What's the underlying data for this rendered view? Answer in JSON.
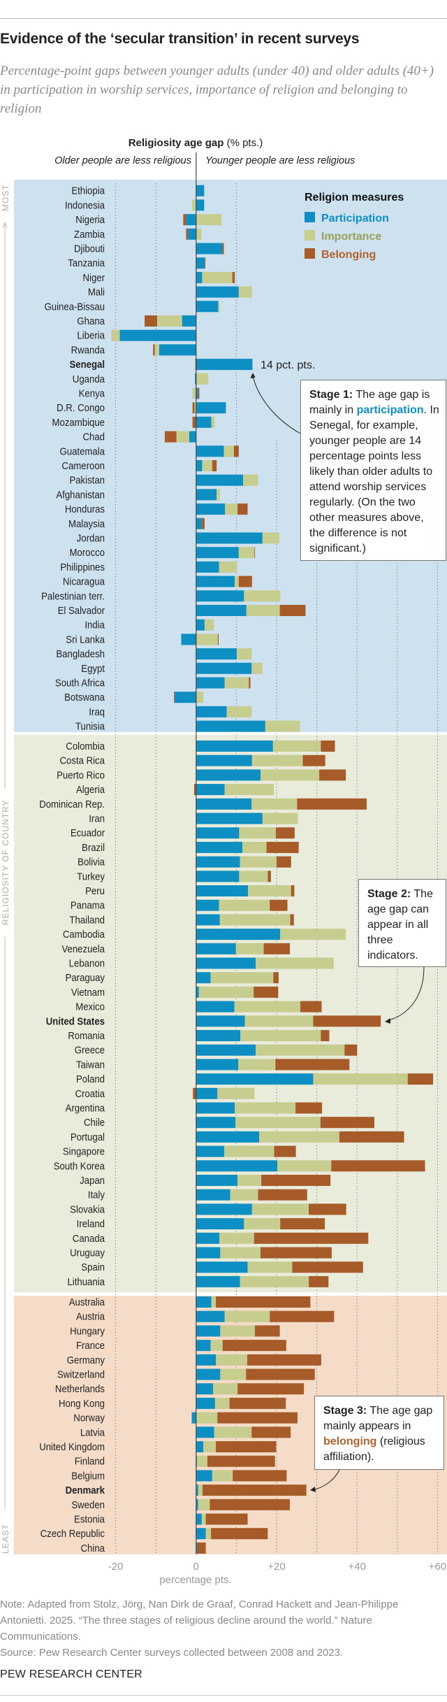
{
  "title": "Evidence of the ‘secular transition’ in recent surveys",
  "subtitle": "Percentage-point gaps between younger adults (under 40) and older adults (40+) in participation in worship services, importance of religion and belonging to religion",
  "header": {
    "bold": "Religiosity age gap",
    "unit": "(% pts.)",
    "left_label": "Older people are less religious",
    "right_label": "Younger people are less religious"
  },
  "side_axis": {
    "top": "MOST",
    "middle": "RELIGIOSITY OF COUNTRY",
    "bottom": "LEAST"
  },
  "legend": {
    "title": "Religion measures",
    "items": [
      "Participation",
      "Importance",
      "Belonging"
    ]
  },
  "colors": {
    "participation": "#0d8fc4",
    "importance": "#c7cc8f",
    "belonging": "#a65b29",
    "panel_stage1": "#cde1ef",
    "panel_stage2": "#e9ebdb",
    "panel_stage3": "#f4dcc8",
    "legend_importance_text": "#9aa35a",
    "legend_belonging_text": "#b2622c"
  },
  "annotations": {
    "senegal_value": "14 pct. pts.",
    "stage1": {
      "label": "Stage 1:",
      "pre": " The age gap is mainly in ",
      "key": "participation",
      "post": ". In Senegal, for example, younger people are 14 percentage points less likely than older adults to attend worship services regularly. (On the two other measures above, the difference is not significant.)"
    },
    "stage2": {
      "label": "Stage 2:",
      "text": " The age gap can appear in all three indicators."
    },
    "stage3": {
      "label": "Stage 3:",
      "pre": " The age gap mainly appears in ",
      "key": "belonging",
      "post": " (religious affiliation)."
    }
  },
  "chart_data": {
    "type": "bar",
    "orientation": "horizontal-stacked",
    "xlabel": "percentage pts.",
    "xlim": [
      -20,
      60
    ],
    "xticks": [
      "-20",
      "0",
      "+20",
      "+40",
      "+60"
    ],
    "grid": true,
    "legend_position": "top-right",
    "series_names": [
      "Participation",
      "Importance",
      "Belonging"
    ],
    "highlighted": [
      "Senegal",
      "United States",
      "Denmark"
    ],
    "groups": [
      {
        "stage": 1,
        "rows": [
          {
            "country": "Ethiopia",
            "participation": 2,
            "importance": 0,
            "belonging": 0
          },
          {
            "country": "Indonesia",
            "participation": 2,
            "importance": -1,
            "belonging": 0
          },
          {
            "country": "Nigeria",
            "participation": -2.5,
            "importance": 6.3,
            "belonging": -0.7
          },
          {
            "country": "Zambia",
            "participation": -2,
            "importance": 1.3,
            "belonging": -0.5
          },
          {
            "country": "Djibouti",
            "participation": 6.5,
            "importance": 0,
            "belonging": 0.4
          },
          {
            "country": "Tanzania",
            "participation": 2.1,
            "importance": 0,
            "belonging": 0.2
          },
          {
            "country": "Niger",
            "participation": 1.5,
            "importance": 7.5,
            "belonging": 0.6
          },
          {
            "country": "Mali",
            "participation": 10.6,
            "importance": 3.3,
            "belonging": 0
          },
          {
            "country": "Guinea-Bissau",
            "participation": 5.5,
            "importance": 0.3,
            "belonging": 0
          },
          {
            "country": "Ghana",
            "participation": -3.5,
            "importance": -6.2,
            "belonging": -3.1
          },
          {
            "country": "Liberia",
            "participation": -19,
            "importance": -2.1,
            "belonging": 0
          },
          {
            "country": "Rwanda",
            "participation": -9.2,
            "importance": -1.1,
            "belonging": -0.4
          },
          {
            "country": "Senegal",
            "participation": 14,
            "importance": 0,
            "belonging": -0.2
          },
          {
            "country": "Uganda",
            "participation": -0.3,
            "importance": 3,
            "belonging": 0
          },
          {
            "country": "Kenya",
            "participation": 0.5,
            "importance": -0.9,
            "belonging": 0.3
          },
          {
            "country": "D.R. Congo",
            "participation": 7.4,
            "importance": -0.4,
            "belonging": -0.5
          },
          {
            "country": "Mozambique",
            "participation": 3.8,
            "importance": 0.8,
            "belonging": -0.9
          },
          {
            "country": "Chad",
            "participation": -1.7,
            "importance": -3.2,
            "belonging": -2.9
          },
          {
            "country": "Guatemala",
            "participation": 6.9,
            "importance": 2.5,
            "belonging": 1.2
          },
          {
            "country": "Cameroon",
            "participation": 1.5,
            "importance": 2.5,
            "belonging": 1.1
          },
          {
            "country": "Pakistan",
            "participation": 11.7,
            "importance": 3.7,
            "belonging": 0
          },
          {
            "country": "Afghanistan",
            "participation": 5.1,
            "importance": 0.8,
            "belonging": 0
          },
          {
            "country": "Honduras",
            "participation": 7.2,
            "importance": 3.1,
            "belonging": 2.5
          },
          {
            "country": "Malaysia",
            "participation": 1.4,
            "importance": 0,
            "belonging": 0.7
          },
          {
            "country": "Jordan",
            "participation": 16.5,
            "importance": 4.2,
            "belonging": 0
          },
          {
            "country": "Morocco",
            "participation": 10.6,
            "importance": 3.9,
            "belonging": 0.1
          },
          {
            "country": "Philippines",
            "participation": 5.7,
            "importance": 4.5,
            "belonging": 0
          },
          {
            "country": "Nicaragua",
            "participation": 9.6,
            "importance": 1,
            "belonging": 3.3
          },
          {
            "country": "Palestinian terr.",
            "participation": 11.9,
            "importance": 9,
            "belonging": 0
          },
          {
            "country": "El Salvador",
            "participation": 12.5,
            "importance": 8.3,
            "belonging": 6.4
          },
          {
            "country": "India",
            "participation": 2.1,
            "importance": 2.3,
            "belonging": 0
          },
          {
            "country": "Sri Lanka",
            "participation": -3.7,
            "importance": 5.4,
            "belonging": 0.2
          },
          {
            "country": "Bangladesh",
            "participation": 10.1,
            "importance": 3.7,
            "belonging": 0
          },
          {
            "country": "Egypt",
            "participation": 13.8,
            "importance": 2.7,
            "belonging": 0
          },
          {
            "country": "South Africa",
            "participation": 7.1,
            "importance": 6,
            "belonging": 0.4
          },
          {
            "country": "Botswana",
            "participation": -5.3,
            "importance": 1.8,
            "belonging": -0.2
          },
          {
            "country": "Iraq",
            "participation": 7.6,
            "importance": 6.2,
            "belonging": 0
          },
          {
            "country": "Tunisia",
            "participation": 17.2,
            "importance": 8.6,
            "belonging": 0
          }
        ]
      },
      {
        "stage": 2,
        "rows": [
          {
            "country": "Colombia",
            "participation": 19.1,
            "importance": 11.9,
            "belonging": 3.5
          },
          {
            "country": "Costa Rica",
            "participation": 13.9,
            "importance": 12.6,
            "belonging": 5.6
          },
          {
            "country": "Puerto Rico",
            "participation": 16,
            "importance": 14.6,
            "belonging": 6.6
          },
          {
            "country": "Algeria",
            "participation": 7.1,
            "importance": 12.2,
            "belonging": -0.5
          },
          {
            "country": "Dominican Rep.",
            "participation": 13.8,
            "importance": 11.3,
            "belonging": 17.3
          },
          {
            "country": "Iran",
            "participation": 16.5,
            "importance": 8.8,
            "belonging": 0
          },
          {
            "country": "Ecuador",
            "participation": 10.7,
            "importance": 9.1,
            "belonging": 4.7
          },
          {
            "country": "Brazil",
            "participation": 11.5,
            "importance": 6,
            "belonging": 8
          },
          {
            "country": "Bolivia",
            "participation": 10.9,
            "importance": 9.1,
            "belonging": 3.6
          },
          {
            "country": "Turkey",
            "participation": 10.7,
            "importance": 7.1,
            "belonging": 0.8
          },
          {
            "country": "Peru",
            "participation": 12.9,
            "importance": 10.7,
            "belonging": 0.8
          },
          {
            "country": "Panama",
            "participation": 5.7,
            "importance": 12.6,
            "belonging": 4.4
          },
          {
            "country": "Thailand",
            "participation": 5.9,
            "importance": 17.5,
            "belonging": 0.9
          },
          {
            "country": "Cambodia",
            "participation": 20.9,
            "importance": 16.3,
            "belonging": 0
          },
          {
            "country": "Venezuela",
            "participation": 9.9,
            "importance": 6.9,
            "belonging": 6.5
          },
          {
            "country": "Lebanon",
            "participation": 14.8,
            "importance": 19.4,
            "belonging": 0
          },
          {
            "country": "Paraguay",
            "participation": 3.6,
            "importance": 15.6,
            "belonging": 1.3
          },
          {
            "country": "Vietnam",
            "participation": 0.7,
            "importance": 13.6,
            "belonging": 6.1
          },
          {
            "country": "Mexico",
            "participation": 9.5,
            "importance": 16.4,
            "belonging": 5.3
          },
          {
            "country": "United States",
            "participation": 12.1,
            "importance": 17,
            "belonging": 16.8
          },
          {
            "country": "Romania",
            "participation": 11,
            "importance": 20,
            "belonging": 2.1
          },
          {
            "country": "Greece",
            "participation": 14.8,
            "importance": 22.1,
            "belonging": 3.1
          },
          {
            "country": "Taiwan",
            "participation": 10.5,
            "importance": 9.2,
            "belonging": 18.4
          },
          {
            "country": "Poland",
            "participation": 29.1,
            "importance": 23.5,
            "belonging": 6.3
          },
          {
            "country": "Croatia",
            "participation": 5.3,
            "importance": 9.2,
            "belonging": -0.8
          },
          {
            "country": "Argentina",
            "participation": 9.6,
            "importance": 15.1,
            "belonging": 6.6
          },
          {
            "country": "Chile",
            "participation": 9.8,
            "importance": 21.1,
            "belonging": 13.4
          },
          {
            "country": "Portugal",
            "participation": 15.7,
            "importance": 19.9,
            "belonging": 16.1
          },
          {
            "country": "Singapore",
            "participation": 7,
            "importance": 12.4,
            "belonging": 5.4
          },
          {
            "country": "South Korea",
            "participation": 20.2,
            "importance": 13.4,
            "belonging": 23.3
          },
          {
            "country": "Japan",
            "participation": 10.3,
            "importance": 5.9,
            "belonging": 17.2
          },
          {
            "country": "Italy",
            "participation": 8.5,
            "importance": 6.9,
            "belonging": 12.2
          },
          {
            "country": "Slovakia",
            "participation": 13.9,
            "importance": 14.1,
            "belonging": 9.3
          },
          {
            "country": "Ireland",
            "participation": 11.9,
            "importance": 9,
            "belonging": 11.1
          },
          {
            "country": "Canada",
            "participation": 5.8,
            "importance": 8.6,
            "belonging": 28.4
          },
          {
            "country": "Uruguay",
            "participation": 6,
            "importance": 10,
            "belonging": 17.7
          },
          {
            "country": "Spain",
            "participation": 12.8,
            "importance": 11.1,
            "belonging": 17.6
          },
          {
            "country": "Lithuania",
            "participation": 10.9,
            "importance": 17.1,
            "belonging": 4.9
          }
        ]
      },
      {
        "stage": 3,
        "rows": [
          {
            "country": "Australia",
            "participation": 3.8,
            "importance": 1.1,
            "belonging": 23.5
          },
          {
            "country": "Austria",
            "participation": 7.1,
            "importance": 11.2,
            "belonging": 16
          },
          {
            "country": "Hungary",
            "participation": 6,
            "importance": 8.6,
            "belonging": 6.2
          },
          {
            "country": "France",
            "participation": 3.6,
            "importance": 3,
            "belonging": 15.8
          },
          {
            "country": "Germany",
            "participation": 4.9,
            "importance": 7.8,
            "belonging": 18.4
          },
          {
            "country": "Switzerland",
            "participation": 6,
            "importance": 6.4,
            "belonging": 17.1
          },
          {
            "country": "Netherlands",
            "participation": 4.2,
            "importance": 6.1,
            "belonging": 16.5
          },
          {
            "country": "Hong Kong",
            "participation": 4.7,
            "importance": 3.6,
            "belonging": 14
          },
          {
            "country": "Norway",
            "participation": -1.1,
            "importance": 5.3,
            "belonging": 19.9
          },
          {
            "country": "Latvia",
            "participation": 4.5,
            "importance": 9.3,
            "belonging": 9.7
          },
          {
            "country": "United Kingdom",
            "participation": 1.8,
            "importance": 3.1,
            "belonging": 15
          },
          {
            "country": "Finland",
            "participation": 0.2,
            "importance": 2.6,
            "belonging": 16.8
          },
          {
            "country": "Belgium",
            "participation": 4,
            "importance": 5.1,
            "belonging": 13.4
          },
          {
            "country": "Denmark",
            "participation": 0.5,
            "importance": 1.1,
            "belonging": 25.8
          },
          {
            "country": "Sweden",
            "participation": 0.5,
            "importance": 2.9,
            "belonging": 19.9
          },
          {
            "country": "Estonia",
            "participation": 1.4,
            "importance": 1,
            "belonging": 10.4
          },
          {
            "country": "Czech Republic",
            "participation": 2.4,
            "importance": 1.3,
            "belonging": 14.1
          },
          {
            "country": "China",
            "participation": 0.3,
            "importance": 0,
            "belonging": 2.1
          }
        ]
      }
    ]
  },
  "note": "Note: Adapted from Stolz, Jörg, Nan Dirk de Graaf, Conrad Hackett and Jean-Philippe Antonietti. 2025. “The three stages of religious decline around the world.” Nature Communications.",
  "source": "Source: Pew Research Center surveys collected between 2008 and 2023.",
  "brand": "PEW RESEARCH CENTER"
}
